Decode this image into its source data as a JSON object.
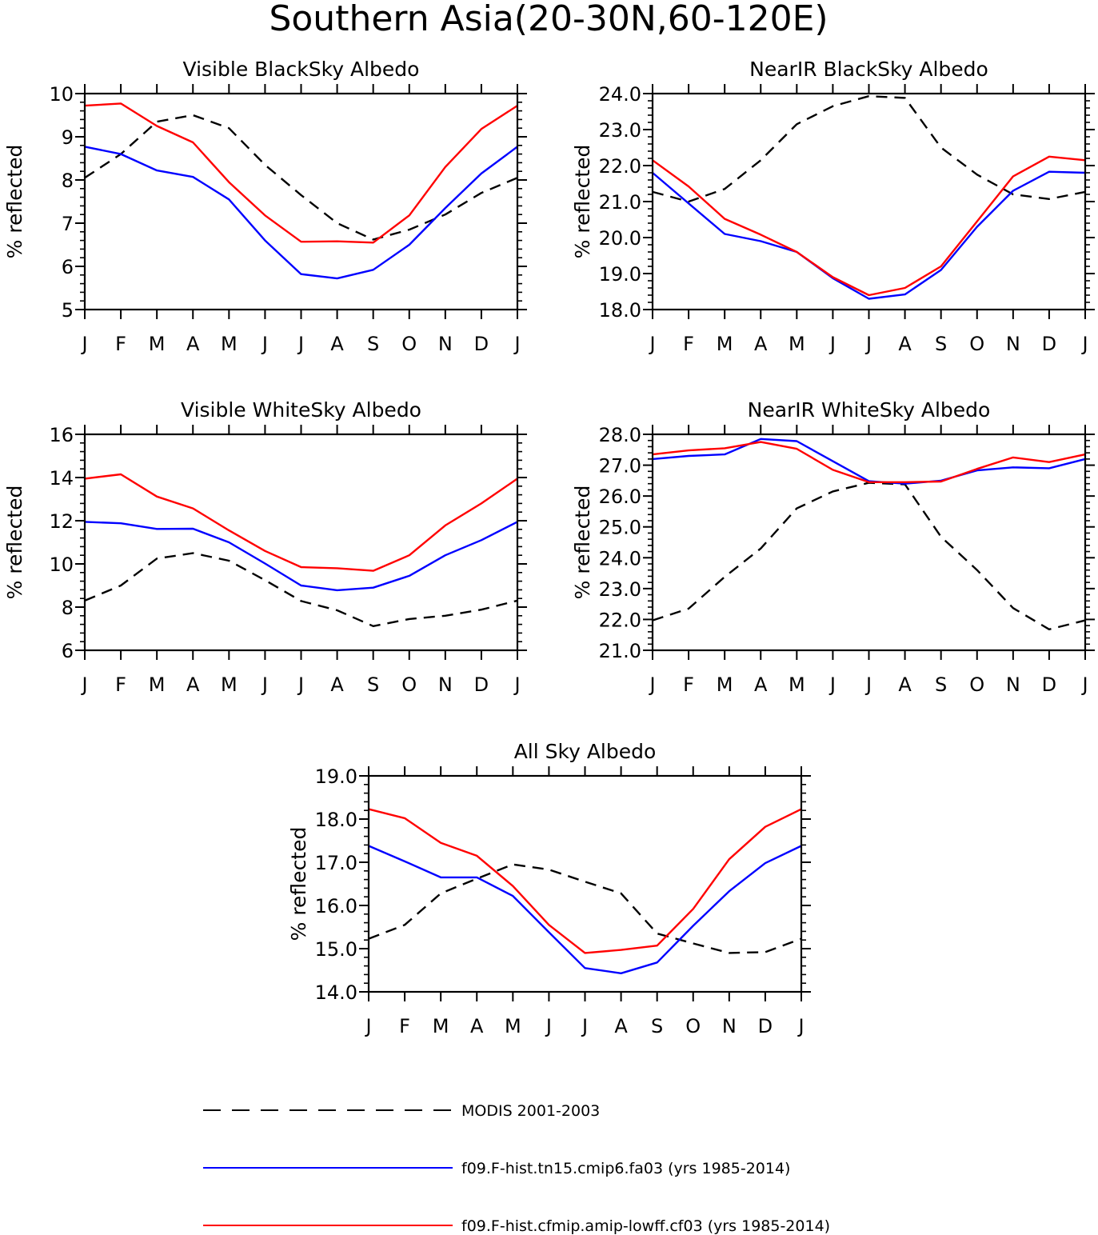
{
  "figure_title": "Southern Asia(20-30N,60-120E)",
  "colors": {
    "MODIS 2001-2003": "#000000",
    "f09.F-hist.tn15.cmip6.fa03 (yrs 1985-2014)": "#0000ff",
    "f09.F-hist.cfmip.amip-lowff.cf03 (yrs 1985-2014)": "#ff0000"
  },
  "legend": [
    {
      "label": "MODIS 2001-2003",
      "style": "dashed"
    },
    {
      "label": "f09.F-hist.tn15.cmip6.fa03 (yrs 1985-2014)",
      "style": "solid"
    },
    {
      "label": "f09.F-hist.cfmip.amip-lowff.cf03 (yrs 1985-2014)",
      "style": "solid"
    }
  ],
  "chart_data": [
    {
      "type": "line",
      "title": "Visible BlackSky Albedo",
      "xlabel": "",
      "ylabel": "% reflected",
      "categories": [
        "J",
        "F",
        "M",
        "A",
        "M",
        "J",
        "J",
        "A",
        "S",
        "O",
        "N",
        "D",
        "J"
      ],
      "ylim": [
        5,
        10
      ],
      "yticks": [
        "5",
        "6",
        "7",
        "8",
        "9",
        "10"
      ],
      "series": [
        {
          "name": "MODIS 2001-2003",
          "values": [
            8.05,
            8.6,
            9.35,
            9.5,
            9.2,
            8.35,
            7.65,
            7.0,
            6.62,
            6.85,
            7.2,
            7.7,
            8.05
          ]
        },
        {
          "name": "f09.F-hist.tn15.cmip6.fa03 (yrs 1985-2014)",
          "values": [
            8.77,
            8.6,
            8.22,
            8.07,
            7.55,
            6.6,
            5.82,
            5.72,
            5.92,
            6.5,
            7.35,
            8.15,
            8.77
          ]
        },
        {
          "name": "f09.F-hist.cfmip.amip-lowff.cf03 (yrs 1985-2014)",
          "values": [
            9.72,
            9.77,
            9.25,
            8.87,
            7.95,
            7.18,
            6.57,
            6.58,
            6.55,
            7.18,
            8.3,
            9.18,
            9.72
          ]
        }
      ]
    },
    {
      "type": "line",
      "title": "NearIR BlackSky Albedo",
      "xlabel": "",
      "ylabel": "% reflected",
      "categories": [
        "J",
        "F",
        "M",
        "A",
        "M",
        "J",
        "J",
        "A",
        "S",
        "O",
        "N",
        "D",
        "J"
      ],
      "ylim": [
        18,
        24
      ],
      "yticks": [
        "18.0",
        "19.0",
        "20.0",
        "21.0",
        "22.0",
        "23.0",
        "24.0"
      ],
      "series": [
        {
          "name": "MODIS 2001-2003",
          "values": [
            21.27,
            21.0,
            21.35,
            22.15,
            23.15,
            23.65,
            23.93,
            23.88,
            22.5,
            21.75,
            21.2,
            21.07,
            21.27
          ]
        },
        {
          "name": "f09.F-hist.tn15.cmip6.fa03 (yrs 1985-2014)",
          "values": [
            21.8,
            20.95,
            20.1,
            19.9,
            19.6,
            18.87,
            18.3,
            18.42,
            19.1,
            20.3,
            21.3,
            21.83,
            21.8
          ]
        },
        {
          "name": "f09.F-hist.cfmip.amip-lowff.cf03 (yrs 1985-2014)",
          "values": [
            22.15,
            21.42,
            20.52,
            20.08,
            19.6,
            18.9,
            18.4,
            18.6,
            19.2,
            20.45,
            21.7,
            22.25,
            22.15
          ]
        }
      ]
    },
    {
      "type": "line",
      "title": "Visible WhiteSky Albedo",
      "xlabel": "",
      "ylabel": "% reflected",
      "categories": [
        "J",
        "F",
        "M",
        "A",
        "M",
        "J",
        "J",
        "A",
        "S",
        "O",
        "N",
        "D",
        "J"
      ],
      "ylim": [
        6,
        16
      ],
      "yticks": [
        "6",
        "8",
        "10",
        "12",
        "14",
        "16"
      ],
      "series": [
        {
          "name": "MODIS 2001-2003",
          "values": [
            8.3,
            9.0,
            10.25,
            10.5,
            10.15,
            9.25,
            8.28,
            7.85,
            7.12,
            7.45,
            7.6,
            7.88,
            8.3
          ]
        },
        {
          "name": "f09.F-hist.tn15.cmip6.fa03 (yrs 1985-2014)",
          "values": [
            11.95,
            11.88,
            11.62,
            11.63,
            11.0,
            10.02,
            9.0,
            8.78,
            8.9,
            9.45,
            10.4,
            11.1,
            11.95
          ]
        },
        {
          "name": "f09.F-hist.cfmip.amip-lowff.cf03 (yrs 1985-2014)",
          "values": [
            13.95,
            14.15,
            13.12,
            12.57,
            11.55,
            10.6,
            9.85,
            9.8,
            9.68,
            10.4,
            11.78,
            12.8,
            13.95
          ]
        }
      ]
    },
    {
      "type": "line",
      "title": "NearIR WhiteSky Albedo",
      "xlabel": "",
      "ylabel": "% reflected",
      "categories": [
        "J",
        "F",
        "M",
        "A",
        "M",
        "J",
        "J",
        "A",
        "S",
        "O",
        "N",
        "D",
        "J"
      ],
      "ylim": [
        21,
        28
      ],
      "yticks": [
        "21.0",
        "22.0",
        "23.0",
        "24.0",
        "25.0",
        "26.0",
        "27.0",
        "28.0"
      ],
      "series": [
        {
          "name": "MODIS 2001-2003",
          "values": [
            21.97,
            22.35,
            23.38,
            24.3,
            25.6,
            26.15,
            26.43,
            26.38,
            24.68,
            23.6,
            22.37,
            21.68,
            21.97
          ]
        },
        {
          "name": "f09.F-hist.tn15.cmip6.fa03 (yrs 1985-2014)",
          "values": [
            27.2,
            27.3,
            27.35,
            27.85,
            27.78,
            27.13,
            26.48,
            26.4,
            26.5,
            26.83,
            26.93,
            26.9,
            27.2
          ]
        },
        {
          "name": "f09.F-hist.cfmip.amip-lowff.cf03 (yrs 1985-2014)",
          "values": [
            27.35,
            27.48,
            27.55,
            27.75,
            27.53,
            26.85,
            26.45,
            26.45,
            26.47,
            26.88,
            27.25,
            27.1,
            27.35
          ]
        }
      ]
    },
    {
      "type": "line",
      "title": "All Sky Albedo",
      "xlabel": "",
      "ylabel": "% reflected",
      "categories": [
        "J",
        "F",
        "M",
        "A",
        "M",
        "J",
        "J",
        "A",
        "S",
        "O",
        "N",
        "D",
        "J"
      ],
      "ylim": [
        14,
        19
      ],
      "yticks": [
        "14.0",
        "15.0",
        "16.0",
        "17.0",
        "18.0",
        "19.0"
      ],
      "series": [
        {
          "name": "MODIS 2001-2003",
          "values": [
            15.23,
            15.55,
            16.28,
            16.62,
            16.95,
            16.83,
            16.55,
            16.28,
            15.35,
            15.12,
            14.9,
            14.92,
            15.23
          ]
        },
        {
          "name": "f09.F-hist.tn15.cmip6.fa03 (yrs 1985-2014)",
          "values": [
            17.38,
            17.02,
            16.65,
            16.65,
            16.22,
            15.38,
            14.55,
            14.43,
            14.68,
            15.53,
            16.33,
            16.98,
            17.38
          ]
        },
        {
          "name": "f09.F-hist.cfmip.amip-lowff.cf03 (yrs 1985-2014)",
          "values": [
            18.23,
            18.02,
            17.45,
            17.15,
            16.45,
            15.55,
            14.9,
            14.97,
            15.07,
            15.92,
            17.07,
            17.82,
            18.23
          ]
        }
      ]
    }
  ]
}
